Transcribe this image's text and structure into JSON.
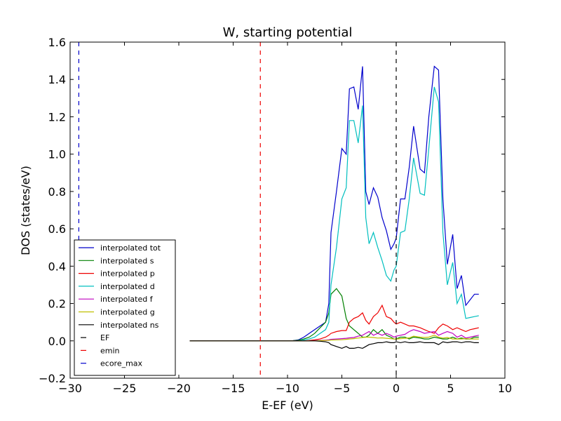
{
  "chart_data": {
    "type": "line",
    "title": "W, starting potential",
    "xlabel": "E-EF (eV)",
    "ylabel": "DOS (states/eV)",
    "xlim": [
      -30,
      10
    ],
    "ylim": [
      -0.2,
      1.6
    ],
    "xticks": [
      -30,
      -25,
      -20,
      -15,
      -10,
      -5,
      0,
      5,
      10
    ],
    "xtick_labels": [
      "−30",
      "−25",
      "−20",
      "−15",
      "−10",
      "−5",
      "0",
      "5",
      "10"
    ],
    "yticks": [
      -0.2,
      0.0,
      0.2,
      0.4,
      0.6,
      0.8,
      1.0,
      1.2,
      1.4,
      1.6
    ],
    "ytick_labels": [
      "−0.2",
      "0.0",
      "0.2",
      "0.4",
      "0.6",
      "0.8",
      "1.0",
      "1.2",
      "1.4",
      "1.6"
    ],
    "grid": false,
    "legend_position": "lower-left",
    "x": [
      -19,
      -18,
      -17,
      -16,
      -15,
      -14,
      -13,
      -12,
      -11,
      -10,
      -9.5,
      -9,
      -8.5,
      -8,
      -7.5,
      -7,
      -6.5,
      -6.2,
      -6,
      -5.5,
      -5,
      -4.6,
      -4.3,
      -3.9,
      -3.5,
      -3.1,
      -2.8,
      -2.5,
      -2.1,
      -1.7,
      -1.3,
      -0.9,
      -0.5,
      -0.2,
      0,
      0.4,
      0.8,
      1.2,
      1.6,
      2.2,
      2.6,
      3.0,
      3.5,
      3.9,
      4.3,
      4.7,
      5.2,
      5.6,
      6.0,
      6.4,
      6.8,
      7.2,
      7.6
    ],
    "series": [
      {
        "name": "interpolated tot",
        "color": "#0000cc",
        "values": [
          0,
          0,
          0,
          0,
          0,
          0,
          0,
          0,
          0,
          0,
          0.001,
          0.005,
          0.02,
          0.04,
          0.06,
          0.08,
          0.1,
          0.2,
          0.58,
          0.8,
          1.03,
          1.0,
          1.35,
          1.36,
          1.24,
          1.47,
          0.8,
          0.73,
          0.82,
          0.77,
          0.66,
          0.59,
          0.49,
          0.52,
          0.55,
          0.76,
          0.76,
          0.93,
          1.15,
          0.92,
          0.9,
          1.2,
          1.47,
          1.45,
          0.76,
          0.41,
          0.57,
          0.28,
          0.35,
          0.19,
          0.22,
          0.25,
          0.25
        ]
      },
      {
        "name": "interpolated s",
        "color": "#008000",
        "values": [
          0,
          0,
          0,
          0,
          0,
          0,
          0,
          0,
          0,
          0,
          0.001,
          0.003,
          0.01,
          0.02,
          0.04,
          0.07,
          0.1,
          0.15,
          0.25,
          0.28,
          0.24,
          0.12,
          0.08,
          0.06,
          0.04,
          0.02,
          0.02,
          0.03,
          0.06,
          0.04,
          0.06,
          0.03,
          0.02,
          0.01,
          0.01,
          0.02,
          0.02,
          0.01,
          0.02,
          0.015,
          0.01,
          0.01,
          0.02,
          0.015,
          0.01,
          0.01,
          0.02,
          0.01,
          0.015,
          0.01,
          0.01,
          0.02,
          0.02
        ]
      },
      {
        "name": "interpolated p",
        "color": "#ee0000",
        "values": [
          0,
          0,
          0,
          0,
          0,
          0,
          0,
          0,
          0,
          0,
          0,
          0,
          0,
          0.002,
          0.005,
          0.01,
          0.02,
          0.03,
          0.04,
          0.05,
          0.055,
          0.055,
          0.1,
          0.12,
          0.13,
          0.15,
          0.11,
          0.09,
          0.13,
          0.15,
          0.19,
          0.13,
          0.12,
          0.1,
          0.09,
          0.1,
          0.09,
          0.08,
          0.08,
          0.07,
          0.06,
          0.05,
          0.04,
          0.07,
          0.09,
          0.08,
          0.06,
          0.07,
          0.06,
          0.05,
          0.06,
          0.065,
          0.07
        ]
      },
      {
        "name": "interpolated d",
        "color": "#00bfbf",
        "values": [
          0,
          0,
          0,
          0,
          0,
          0,
          0,
          0,
          0,
          0,
          0,
          0,
          0.005,
          0.01,
          0.02,
          0.04,
          0.06,
          0.1,
          0.3,
          0.5,
          0.76,
          0.82,
          1.18,
          1.18,
          1.06,
          1.26,
          0.66,
          0.52,
          0.58,
          0.5,
          0.43,
          0.35,
          0.32,
          0.38,
          0.4,
          0.58,
          0.59,
          0.76,
          0.98,
          0.79,
          0.78,
          1.03,
          1.36,
          1.28,
          0.58,
          0.3,
          0.42,
          0.2,
          0.25,
          0.12,
          0.125,
          0.13,
          0.135
        ]
      },
      {
        "name": "interpolated f",
        "color": "#bf00bf",
        "values": [
          0,
          0,
          0,
          0,
          0,
          0,
          0,
          0,
          0,
          0,
          0,
          0,
          0,
          0,
          0.001,
          0.002,
          0.004,
          0.006,
          0.008,
          0.01,
          0.012,
          0.014,
          0.016,
          0.018,
          0.025,
          0.03,
          0.04,
          0.05,
          0.03,
          0.04,
          0.03,
          0.04,
          0.03,
          0.02,
          0.025,
          0.03,
          0.035,
          0.05,
          0.06,
          0.05,
          0.04,
          0.045,
          0.05,
          0.03,
          0.04,
          0.05,
          0.04,
          0.02,
          0.03,
          0.015,
          0.02,
          0.025,
          0.03
        ]
      },
      {
        "name": "interpolated g",
        "color": "#bfbf00",
        "values": [
          0,
          0,
          0,
          0,
          0,
          0,
          0,
          0,
          0,
          0,
          0,
          0,
          0,
          0,
          0,
          0.001,
          0.002,
          0.003,
          0.004,
          0.005,
          0.006,
          0.008,
          0.01,
          0.012,
          0.015,
          0.018,
          0.02,
          0.02,
          0.018,
          0.015,
          0.016,
          0.014,
          0.012,
          0.01,
          0.01,
          0.012,
          0.014,
          0.016,
          0.025,
          0.02,
          0.018,
          0.02,
          0.03,
          0.02,
          0.015,
          0.018,
          0.01,
          0.01,
          0.01,
          0.012,
          0.01,
          0.01,
          0.01
        ]
      },
      {
        "name": "interpolated ns",
        "color": "#000000",
        "values": [
          0,
          0,
          0,
          0,
          0,
          0,
          0,
          0,
          0,
          0,
          0,
          0,
          0,
          0,
          0,
          -0.002,
          -0.005,
          -0.01,
          -0.02,
          -0.03,
          -0.04,
          -0.03,
          -0.04,
          -0.04,
          -0.035,
          -0.04,
          -0.03,
          -0.02,
          -0.015,
          -0.01,
          -0.01,
          -0.005,
          -0.01,
          -0.01,
          -0.005,
          -0.01,
          -0.005,
          -0.01,
          -0.01,
          -0.005,
          -0.01,
          -0.01,
          -0.01,
          -0.02,
          -0.005,
          -0.01,
          -0.005,
          -0.005,
          -0.01,
          -0.005,
          -0.005,
          -0.01,
          -0.01
        ]
      }
    ],
    "vlines": [
      {
        "name": "EF",
        "x": 0,
        "color": "#000000"
      },
      {
        "name": "emin",
        "x": -12.5,
        "color": "#ee0000"
      },
      {
        "name": "ecore_max",
        "x": -29.2,
        "color": "#0000cc"
      }
    ]
  }
}
